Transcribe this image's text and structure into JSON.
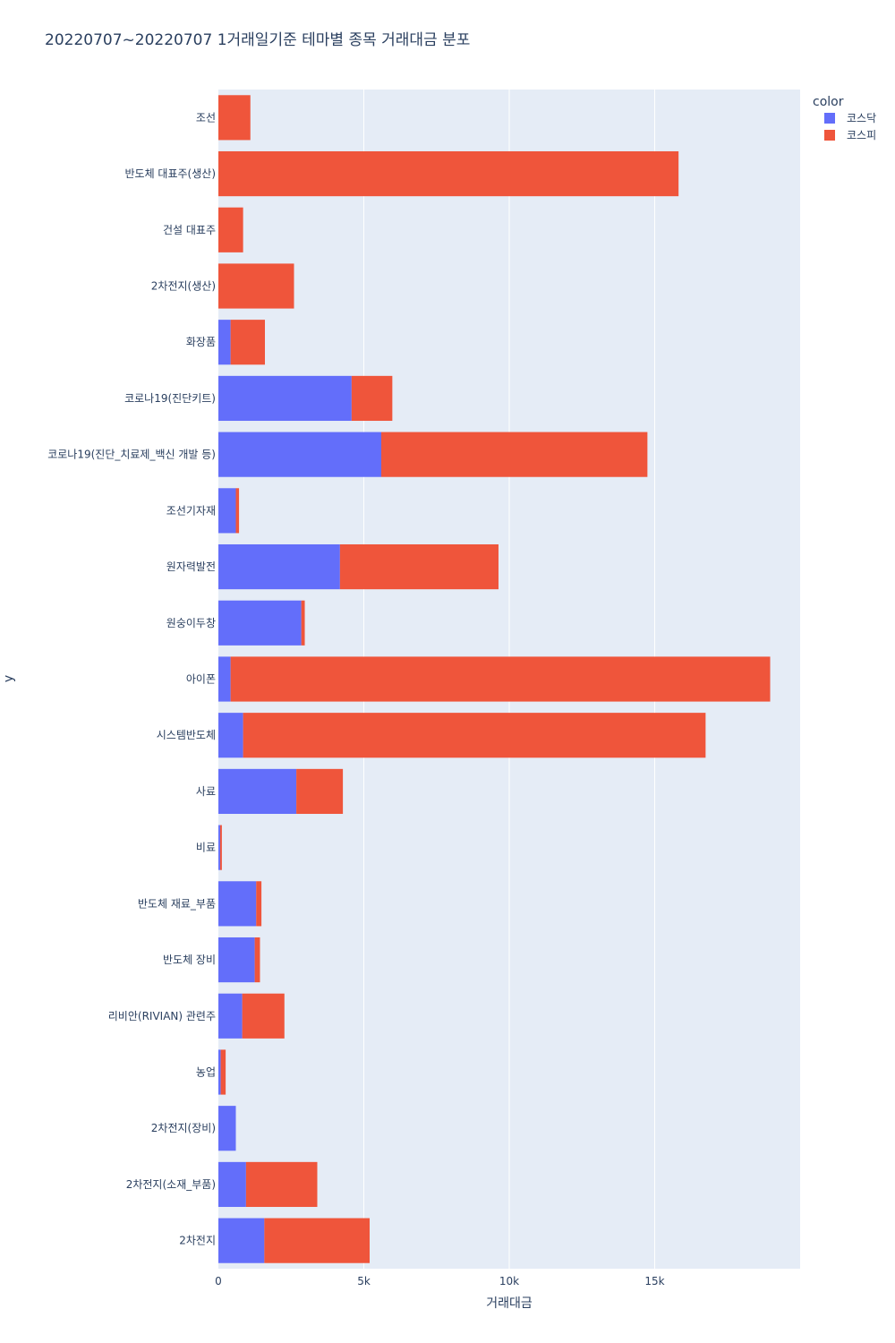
{
  "chart_data": {
    "type": "bar",
    "orientation": "horizontal",
    "barmode": "stack",
    "title": "20220707~20220707 1거래일기준 테마별 종목 거래대금 분포",
    "xlabel": "거래대금",
    "ylabel": "y",
    "xlim": [
      0,
      20000
    ],
    "xticks": [
      0,
      5000,
      10000,
      15000
    ],
    "xtick_labels": [
      "0",
      "5k",
      "10k",
      "15k"
    ],
    "grid": true,
    "legend_title": "color",
    "legend_position": "top-right",
    "categories": [
      "조선",
      "반도체 대표주(생산)",
      "건설 대표주",
      "2차전지(생산)",
      "화장품",
      "코로나19(진단키트)",
      "코로나19(진단_치료제_백신 개발 등)",
      "조선기자재",
      "원자력발전",
      "원숭이두창",
      "아이폰",
      "시스템반도체",
      "사료",
      "비료",
      "반도체 재료_부품",
      "반도체 장비",
      "리비안(RIVIAN) 관련주",
      "농업",
      "2차전지(장비)",
      "2차전지(소재_부품)",
      "2차전지"
    ],
    "series": [
      {
        "name": "코스닥",
        "color": "#636efa",
        "values": [
          0,
          0,
          0,
          0,
          420,
          4580,
          5600,
          600,
          4180,
          2850,
          420,
          850,
          2680,
          60,
          1300,
          1250,
          820,
          80,
          600,
          950,
          1580
        ]
      },
      {
        "name": "코스피",
        "color": "#ef553b",
        "values": [
          1100,
          15820,
          850,
          2600,
          1180,
          1400,
          9150,
          110,
          5450,
          120,
          18550,
          15900,
          1600,
          60,
          180,
          180,
          1450,
          170,
          0,
          2450,
          3620
        ]
      }
    ]
  }
}
